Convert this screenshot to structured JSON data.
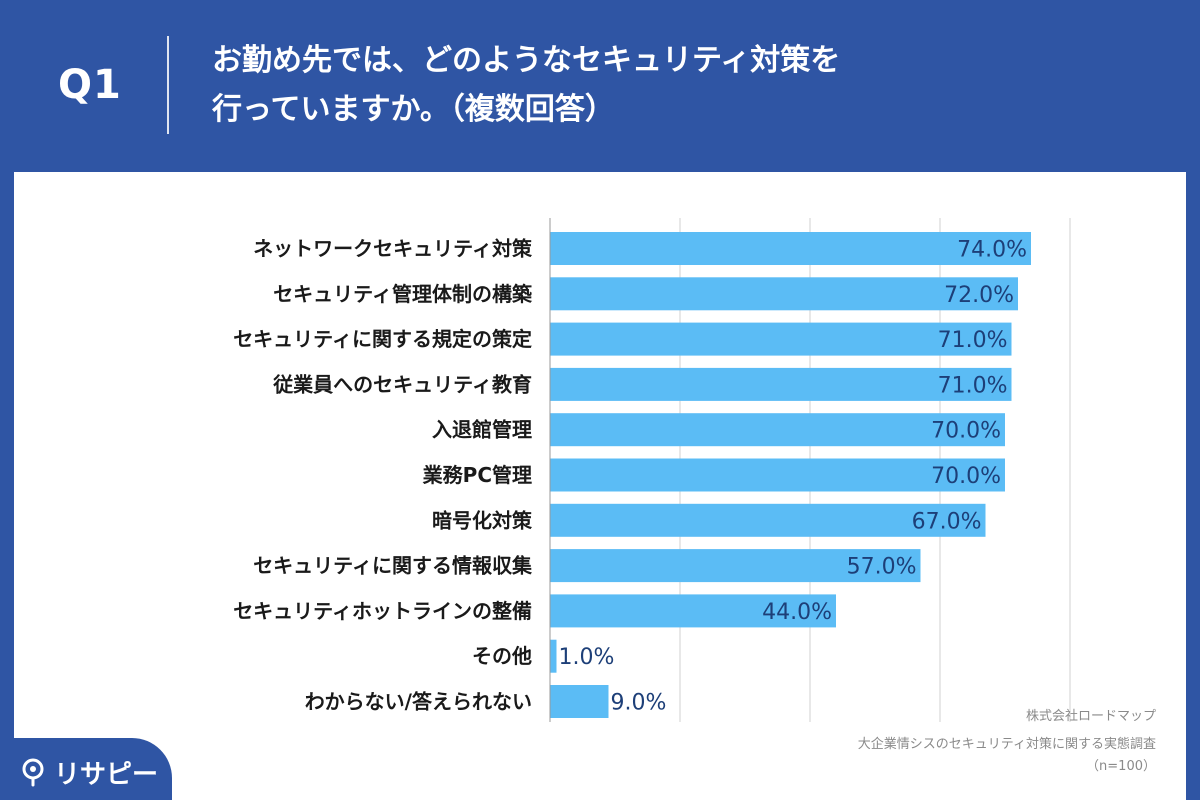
{
  "header": {
    "question_id": "Q1",
    "title_line1": "お勤め先では、どのようなセキュリティ対策を",
    "title_line2": "行っていますか。（複数回答）"
  },
  "chart_data": {
    "type": "bar",
    "orientation": "horizontal",
    "categories": [
      "ネットワークセキュリティ対策",
      "セキュリティ管理体制の構築",
      "セキュリティに関する規定の策定",
      "従業員へのセキュリティ教育",
      "入退館管理",
      "業務PC管理",
      "暗号化対策",
      "セキュリティに関する情報収集",
      "セキュリティホットラインの整備",
      "その他",
      "わからない/答えられない"
    ],
    "values": [
      74.0,
      72.0,
      71.0,
      71.0,
      70.0,
      70.0,
      67.0,
      57.0,
      44.0,
      1.0,
      9.0
    ],
    "value_labels": [
      "74.0%",
      "72.0%",
      "71.0%",
      "71.0%",
      "70.0%",
      "70.0%",
      "67.0%",
      "57.0%",
      "44.0%",
      "1.0%",
      "9.0%"
    ],
    "xlim": [
      0,
      80
    ],
    "grid": true,
    "colors": {
      "bar": "#5bbcf5",
      "value_label": "#1d3f78",
      "grid": "#d0d0d0"
    }
  },
  "footnote": {
    "company": "株式会社ロードマップ",
    "survey": "大企業情シスのセキュリティ対策に関する実態調査",
    "sample": "（n=100）"
  },
  "brand": {
    "logo_text": "リサピー",
    "icon": "pin-icon"
  },
  "colors": {
    "background": "#2f55a4",
    "panel": "#ffffff"
  }
}
